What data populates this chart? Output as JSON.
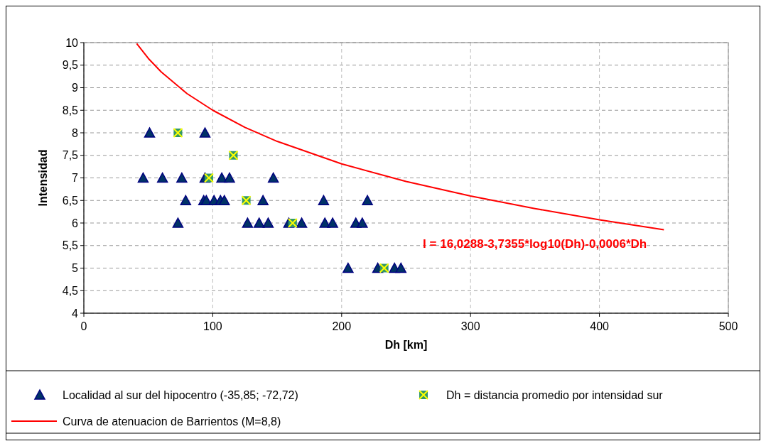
{
  "chart_data": {
    "type": "scatter",
    "xlabel": "Dh [km]",
    "ylabel": "Intensidad",
    "xlim": [
      0,
      500
    ],
    "xticks": [
      0,
      100,
      200,
      300,
      400,
      500
    ],
    "ylim": [
      4,
      10
    ],
    "yticks": [
      4,
      {
        "value": 4.5,
        "label": "4,5"
      },
      5,
      {
        "value": 5.5,
        "label": "5,5"
      },
      6,
      {
        "value": 6.5,
        "label": "6,5"
      },
      7,
      {
        "value": 7.5,
        "label": "7,5"
      },
      8,
      {
        "value": 8.5,
        "label": "8,5"
      },
      9,
      {
        "value": 9.5,
        "label": "9,5"
      },
      10
    ],
    "grid": true,
    "legend": "bottom",
    "annotations": [
      "I = 16,0288-3,7355*log10(Dh)-0,0006*Dh"
    ],
    "series": [
      {
        "name": "Localidad al sur del hipocentro (-35,85; -72,72)",
        "marker": "triangle",
        "color": "#000080",
        "x": [
          51,
          94,
          46,
          61,
          76,
          94,
          107,
          113,
          147,
          79,
          93,
          95,
          101,
          106,
          109,
          139,
          186,
          220,
          73,
          127,
          136,
          143,
          159,
          169,
          187,
          193,
          211,
          216,
          205,
          228,
          241,
          246
        ],
        "values": [
          8,
          8,
          7,
          7,
          7,
          7,
          7,
          7,
          7,
          6.5,
          6.5,
          6.5,
          6.5,
          6.5,
          6.5,
          6.5,
          6.5,
          6.5,
          6,
          6,
          6,
          6,
          6,
          6,
          6,
          6,
          6,
          6,
          5,
          5,
          5,
          5
        ]
      },
      {
        "name": "Dh = distancia promedio por intensidad sur",
        "marker": "square",
        "color": "#339966",
        "x": [
          73,
          97,
          116,
          126,
          162,
          233
        ],
        "values": [
          8,
          7,
          7.5,
          6.5,
          6,
          5
        ]
      },
      {
        "name": "Curva de atenuacion de Barrientos (M=8,8)",
        "type": "line",
        "marker": "none",
        "color": "#ff0000",
        "x": [
          41,
          50,
          60,
          80,
          100,
          125,
          150,
          200,
          250,
          300,
          350,
          400,
          450
        ],
        "values": [
          9.98,
          9.65,
          9.35,
          8.87,
          8.5,
          8.12,
          7.81,
          7.31,
          6.92,
          6.6,
          6.32,
          6.07,
          5.85
        ]
      }
    ]
  }
}
